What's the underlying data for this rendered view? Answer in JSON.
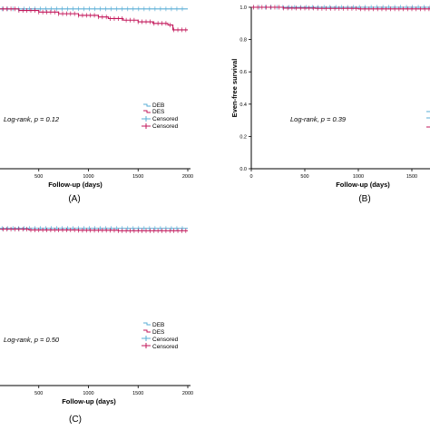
{
  "chart_data": [
    {
      "id": "A",
      "type": "line",
      "caption": "(A)",
      "xlabel": "Follow-up (days)",
      "ylabel": "",
      "xticks": [
        500,
        1000,
        1500,
        2000
      ],
      "xlim": [
        0,
        2000
      ],
      "ylim": [
        0,
        1.0
      ],
      "annotation": "Log-rank, p = 0.12",
      "legend": {
        "position": "bottom-right",
        "entries": [
          "DEB",
          "DES",
          "Censored",
          "Censored"
        ]
      },
      "series": [
        {
          "name": "DEB",
          "color": "#5aaed6",
          "x": [
            0,
            2000
          ],
          "y": [
            0.99,
            0.99
          ]
        },
        {
          "name": "DES",
          "color": "#c2185b",
          "x": [
            0,
            300,
            500,
            700,
            900,
            1100,
            1200,
            1350,
            1500,
            1650,
            1800,
            1850,
            2000
          ],
          "y": [
            0.99,
            0.98,
            0.97,
            0.96,
            0.95,
            0.94,
            0.93,
            0.92,
            0.91,
            0.9,
            0.89,
            0.86,
            0.86
          ]
        }
      ]
    },
    {
      "id": "B",
      "type": "line",
      "caption": "(B)",
      "xlabel": "Follow-up (days)",
      "ylabel": "Even-free survival",
      "xticks": [
        0,
        500,
        1000,
        1500
      ],
      "yticks": [
        "0.0",
        "0.2",
        "0.4",
        "0.6",
        "0.8",
        "1.0"
      ],
      "xlim": [
        0,
        1750
      ],
      "ylim": [
        0,
        1.0
      ],
      "annotation": "Log-rank, p = 0.39",
      "series": [
        {
          "name": "DEB",
          "color": "#5aaed6",
          "x": [
            0,
            1750
          ],
          "y": [
            1.0,
            1.0
          ]
        },
        {
          "name": "DES",
          "color": "#c2185b",
          "x": [
            0,
            300,
            600,
            1000,
            1750
          ],
          "y": [
            1.0,
            0.995,
            0.993,
            0.99,
            0.99
          ]
        }
      ]
    },
    {
      "id": "C",
      "type": "line",
      "caption": "(C)",
      "xlabel": "Follow-up (days)",
      "ylabel": "",
      "xticks": [
        500,
        1000,
        1500,
        2000
      ],
      "xlim": [
        0,
        2000
      ],
      "ylim": [
        0,
        1.0
      ],
      "annotation": "Log-rank, p = 0.50",
      "legend": {
        "position": "bottom-right",
        "entries": [
          "DEB",
          "DES",
          "Censored",
          "Censored"
        ]
      },
      "series": [
        {
          "name": "DEB",
          "color": "#5aaed6",
          "x": [
            0,
            2000
          ],
          "y": [
            0.99,
            0.99
          ]
        },
        {
          "name": "DES",
          "color": "#c2185b",
          "x": [
            0,
            400,
            900,
            1300,
            2000
          ],
          "y": [
            0.985,
            0.98,
            0.978,
            0.975,
            0.975
          ]
        }
      ]
    }
  ]
}
